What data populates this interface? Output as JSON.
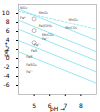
{
  "chart_data": {
    "type": "line",
    "xlabel": "pH",
    "ylabel": "pe",
    "xlim": [
      4,
      9
    ],
    "ylim": [
      -8,
      12
    ],
    "xticks": [
      5,
      6,
      7,
      8
    ],
    "yticks": [
      -6,
      -4,
      -2,
      0,
      2,
      4,
      6,
      8,
      10
    ],
    "color": "#66ddee",
    "series": [
      {
        "type": "line",
        "line_style": "solid",
        "x": [
          4,
          9
        ],
        "values": [
          11.0,
          4.0
        ]
      },
      {
        "type": "line",
        "line_style": "solid",
        "x": [
          4,
          9
        ],
        "values": [
          8.5,
          1.5
        ]
      },
      {
        "type": "line",
        "line_style": "solid",
        "x": [
          4,
          9
        ],
        "values": [
          6.5,
          -0.5
        ]
      },
      {
        "type": "line",
        "line_style": "solid",
        "x": [
          4,
          9
        ],
        "values": [
          4.0,
          -3.0
        ]
      },
      {
        "type": "line",
        "line_style": "solid",
        "x": [
          4,
          9
        ],
        "values": [
          1.5,
          -5.5
        ]
      },
      {
        "type": "line",
        "line_style": "dashed",
        "x": [
          4,
          9
        ],
        "values": [
          10.5,
          6.5
        ]
      },
      {
        "type": "scatter",
        "marker": "circle",
        "color": "#888888",
        "x": [
          5.0,
          5.0,
          5.0
        ],
        "values": [
          8.8,
          6.2,
          3.5
        ]
      }
    ],
    "annotations": [
      {
        "x": 4.1,
        "y": 11.2,
        "text": "NO₃⁻"
      },
      {
        "x": 4.1,
        "y": 9.0,
        "text": "Fe³⁺"
      },
      {
        "x": 5.3,
        "y": 10.2,
        "text": "MnO₂"
      },
      {
        "x": 7.2,
        "y": 8.5,
        "text": "MnO₂"
      },
      {
        "x": 7.0,
        "y": 6.8,
        "text": "MnCO₃"
      },
      {
        "x": 5.3,
        "y": 7.2,
        "text": "Fe(OH)₃"
      },
      {
        "x": 5.5,
        "y": 5.2,
        "text": "MnCO₃"
      },
      {
        "x": 5.5,
        "y": 4.3,
        "text": "Fe²⁺"
      },
      {
        "x": 5.0,
        "y": 3.0,
        "text": "Fe²⁺"
      },
      {
        "x": 4.8,
        "y": 1.8,
        "text": "FeS"
      },
      {
        "x": 4.5,
        "y": 0.3,
        "text": "FeS"
      },
      {
        "x": 4.5,
        "y": -1.5,
        "text": "FeSO₄"
      },
      {
        "x": 4.5,
        "y": -3.0,
        "text": "Fe²⁺"
      }
    ]
  }
}
